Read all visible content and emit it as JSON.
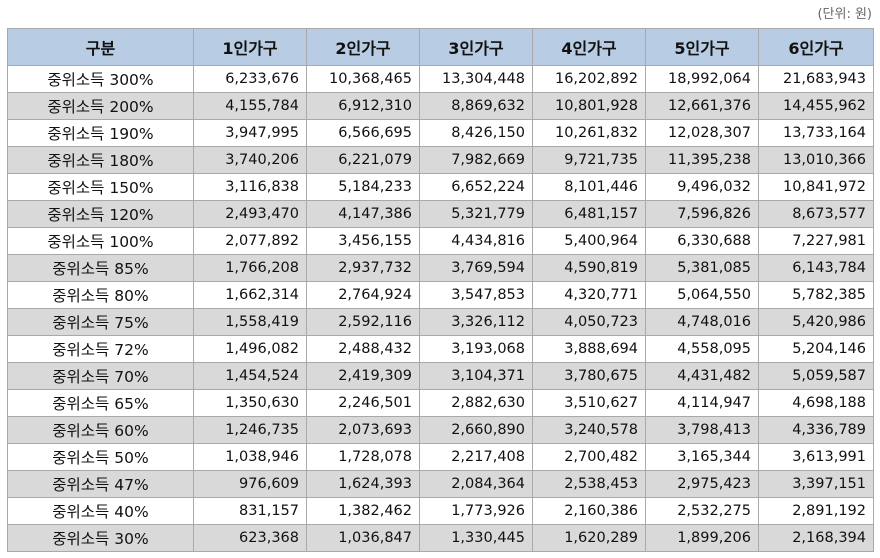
{
  "unit_note": "(단위: 원)",
  "headers": [
    "구분",
    "1인가구",
    "2인가구",
    "3인가구",
    "4인가구",
    "5인가구",
    "6인가구"
  ],
  "rows": [
    [
      "중위소득 300%",
      "6,233,676",
      "10,368,465",
      "13,304,448",
      "16,202,892",
      "18,992,064",
      "21,683,943"
    ],
    [
      "중위소득 200%",
      "4,155,784",
      "6,912,310",
      "8,869,632",
      "10,801,928",
      "12,661,376",
      "14,455,962"
    ],
    [
      "중위소득 190%",
      "3,947,995",
      "6,566,695",
      "8,426,150",
      "10,261,832",
      "12,028,307",
      "13,733,164"
    ],
    [
      "중위소득 180%",
      "3,740,206",
      "6,221,079",
      "7,982,669",
      "9,721,735",
      "11,395,238",
      "13,010,366"
    ],
    [
      "중위소득 150%",
      "3,116,838",
      "5,184,233",
      "6,652,224",
      "8,101,446",
      "9,496,032",
      "10,841,972"
    ],
    [
      "중위소득 120%",
      "2,493,470",
      "4,147,386",
      "5,321,779",
      "6,481,157",
      "7,596,826",
      "8,673,577"
    ],
    [
      "중위소득 100%",
      "2,077,892",
      "3,456,155",
      "4,434,816",
      "5,400,964",
      "6,330,688",
      "7,227,981"
    ],
    [
      "중위소득 85%",
      "1,766,208",
      "2,937,732",
      "3,769,594",
      "4,590,819",
      "5,381,085",
      "6,143,784"
    ],
    [
      "중위소득 80%",
      "1,662,314",
      "2,764,924",
      "3,547,853",
      "4,320,771",
      "5,064,550",
      "5,782,385"
    ],
    [
      "중위소득 75%",
      "1,558,419",
      "2,592,116",
      "3,326,112",
      "4,050,723",
      "4,748,016",
      "5,420,986"
    ],
    [
      "중위소득 72%",
      "1,496,082",
      "2,488,432",
      "3,193,068",
      "3,888,694",
      "4,558,095",
      "5,204,146"
    ],
    [
      "중위소득 70%",
      "1,454,524",
      "2,419,309",
      "3,104,371",
      "3,780,675",
      "4,431,482",
      "5,059,587"
    ],
    [
      "중위소득 65%",
      "1,350,630",
      "2,246,501",
      "2,882,630",
      "3,510,627",
      "4,114,947",
      "4,698,188"
    ],
    [
      "중위소득 60%",
      "1,246,735",
      "2,073,693",
      "2,660,890",
      "3,240,578",
      "3,798,413",
      "4,336,789"
    ],
    [
      "중위소득 50%",
      "1,038,946",
      "1,728,078",
      "2,217,408",
      "2,700,482",
      "3,165,344",
      "3,613,991"
    ],
    [
      "중위소득 47%",
      "976,609",
      "1,624,393",
      "2,084,364",
      "2,538,453",
      "2,975,423",
      "3,397,151"
    ],
    [
      "중위소득 40%",
      "831,157",
      "1,382,462",
      "1,773,926",
      "2,160,386",
      "2,532,275",
      "2,891,192"
    ],
    [
      "중위소득 30%",
      "623,368",
      "1,036,847",
      "1,330,445",
      "1,620,289",
      "1,899,206",
      "2,168,394"
    ]
  ]
}
